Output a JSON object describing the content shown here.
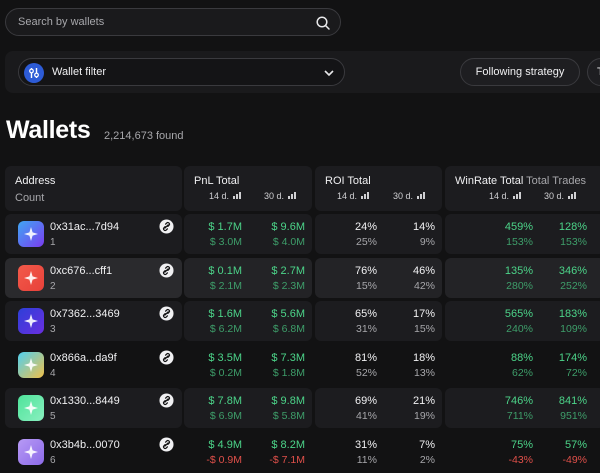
{
  "search": {
    "placeholder": "Search by wallets"
  },
  "toolbar": {
    "wallet_filter_label": "Wallet filter",
    "following_strategy_label": "Following strategy",
    "next_button_label": "T"
  },
  "page": {
    "title": "Wallets",
    "found": "2,214,673 found"
  },
  "columns": {
    "address": "Address",
    "count": "Count",
    "pnl": "PnL Total",
    "roi": "ROI Total",
    "winrate": "WinRate Total",
    "trades": "Total Trades",
    "period_14d": "14 d.",
    "period_30d": "30 d."
  },
  "rows": [
    {
      "address": "0x31ac...7d94",
      "rank": "1",
      "avatar_colors": [
        "#3fa7f3",
        "#7a3cf0"
      ],
      "pnl_14": "$ 1.7M",
      "pnl_14_sub": "$ 3.0M",
      "pnl_30": "$ 9.6M",
      "pnl_30_sub": "$ 4.0M",
      "roi_14": "24%",
      "roi_14_sub": "25%",
      "roi_30": "14%",
      "roi_30_sub": "9%",
      "wr_14": "459%",
      "wr_14_sub": "153%",
      "wr_30": "128%",
      "wr_30_sub": "153%"
    },
    {
      "address": "0xc676...cff1",
      "rank": "2",
      "avatar_colors": [
        "#f25a4a",
        "#e8413a"
      ],
      "pnl_14": "$ 0.1M",
      "pnl_14_sub": "$ 2.1M",
      "pnl_30": "$ 2.7M",
      "pnl_30_sub": "$ 2.3M",
      "roi_14": "76%",
      "roi_14_sub": "15%",
      "roi_30": "46%",
      "roi_30_sub": "42%",
      "wr_14": "135%",
      "wr_14_sub": "280%",
      "wr_30": "346%",
      "wr_30_sub": "252%"
    },
    {
      "address": "0x7362...3469",
      "rank": "3",
      "avatar_colors": [
        "#2d3fd8",
        "#6a2fe0"
      ],
      "pnl_14": "$ 1.6M",
      "pnl_14_sub": "$ 6.2M",
      "pnl_30": "$ 5.6M",
      "pnl_30_sub": "$ 6.8M",
      "roi_14": "65%",
      "roi_14_sub": "31%",
      "roi_30": "17%",
      "roi_30_sub": "15%",
      "wr_14": "565%",
      "wr_14_sub": "240%",
      "wr_30": "183%",
      "wr_30_sub": "109%"
    },
    {
      "address": "0x866a...da9f",
      "rank": "4",
      "avatar_colors": [
        "#4fd0f0",
        "#f0c04a"
      ],
      "pnl_14": "$ 3.5M",
      "pnl_14_sub": "$ 0.2M",
      "pnl_30": "$ 7.3M",
      "pnl_30_sub": "$ 1.8M",
      "roi_14": "81%",
      "roi_14_sub": "52%",
      "roi_30": "18%",
      "roi_30_sub": "13%",
      "wr_14": "88%",
      "wr_14_sub": "62%",
      "wr_30": "174%",
      "wr_30_sub": "72%"
    },
    {
      "address": "0x1330...8449",
      "rank": "5",
      "avatar_colors": [
        "#4ee39a",
        "#8af0c0"
      ],
      "pnl_14": "$ 7.8M",
      "pnl_14_sub": "$ 6.9M",
      "pnl_30": "$ 9.8M",
      "pnl_30_sub": "$ 5.8M",
      "roi_14": "69%",
      "roi_14_sub": "41%",
      "roi_30": "21%",
      "roi_30_sub": "19%",
      "wr_14": "746%",
      "wr_14_sub": "711%",
      "wr_30": "841%",
      "wr_30_sub": "951%"
    },
    {
      "address": "0x3b4b...0070",
      "rank": "6",
      "avatar_colors": [
        "#b79af5",
        "#8c6ae8"
      ],
      "pnl_14": "$ 4.9M",
      "pnl_14_sub": "-$ 0.9M",
      "pnl_30": "$ 8.2M",
      "pnl_30_sub": "-$ 7.1M",
      "roi_14": "31%",
      "roi_14_sub": "11%",
      "roi_30": "7%",
      "roi_30_sub": "2%",
      "wr_14": "75%",
      "wr_14_sub": "-43%",
      "wr_30": "57%",
      "wr_30_sub": "-49%"
    }
  ],
  "colors": {
    "positive": "#4cd489",
    "negative": "#e0504a",
    "accent": "#2d5bd6"
  }
}
